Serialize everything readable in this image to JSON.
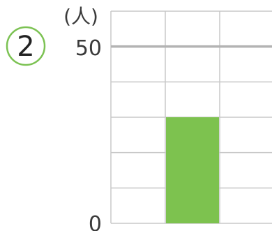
{
  "badge": {
    "number": "2",
    "color": "#7cc253"
  },
  "chart_data": {
    "type": "bar",
    "unit_label": "(人)",
    "y_tick_labels": [
      "50",
      "0"
    ],
    "y_ticks": [
      50,
      0
    ],
    "ylim": [
      0,
      60
    ],
    "grid": true,
    "grid_step": 10,
    "highlight_line_value": 50,
    "categories": [
      "",
      "",
      ""
    ],
    "values": [
      0,
      30,
      0
    ],
    "bar_color": "#7dc24f",
    "grid_color": "#c8c8c8",
    "highlight_line_color": "#b3b3b3"
  }
}
